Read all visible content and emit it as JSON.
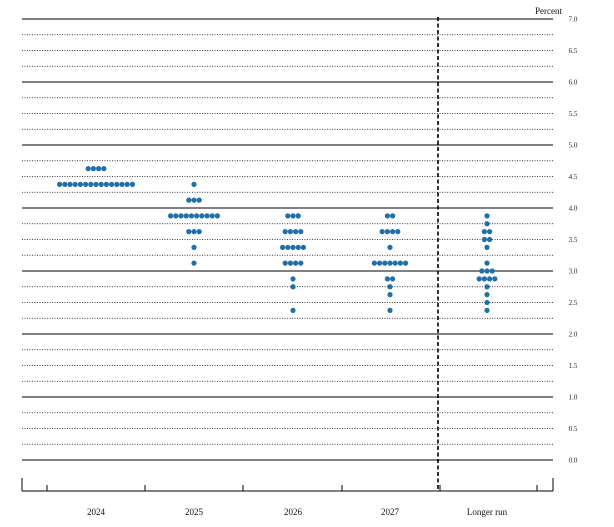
{
  "chart_data": {
    "type": "scatter",
    "ylabel": "Percent",
    "ylim": [
      0,
      7
    ],
    "yticks": [
      "0.0",
      "0.5",
      "1.0",
      "1.5",
      "2.0",
      "2.5",
      "3.0",
      "3.5",
      "4.0",
      "4.5",
      "5.0",
      "5.5",
      "6.0",
      "6.5",
      "7.0"
    ],
    "categories": [
      "2024",
      "2025",
      "2026",
      "2027",
      "Longer run"
    ],
    "grid": true,
    "separator_before": "Longer run",
    "point_color": "#1f6fa8",
    "series": [
      {
        "category": "2024",
        "points": [
          {
            "y": 4.625,
            "count": 4
          },
          {
            "y": 4.375,
            "count": 15
          }
        ]
      },
      {
        "category": "2025",
        "points": [
          {
            "y": 4.375,
            "count": 1
          },
          {
            "y": 4.125,
            "count": 3
          },
          {
            "y": 3.875,
            "count": 10
          },
          {
            "y": 3.625,
            "count": 3
          },
          {
            "y": 3.375,
            "count": 1
          },
          {
            "y": 3.125,
            "count": 1
          }
        ]
      },
      {
        "category": "2026",
        "points": [
          {
            "y": 3.875,
            "count": 3
          },
          {
            "y": 3.625,
            "count": 4
          },
          {
            "y": 3.375,
            "count": 5
          },
          {
            "y": 3.125,
            "count": 4
          },
          {
            "y": 2.875,
            "count": 1
          },
          {
            "y": 2.75,
            "count": 1
          },
          {
            "y": 2.375,
            "count": 1
          }
        ]
      },
      {
        "category": "2027",
        "points": [
          {
            "y": 3.875,
            "count": 2
          },
          {
            "y": 3.625,
            "count": 4
          },
          {
            "y": 3.375,
            "count": 1
          },
          {
            "y": 3.125,
            "count": 7
          },
          {
            "y": 2.875,
            "count": 2
          },
          {
            "y": 2.75,
            "count": 1
          },
          {
            "y": 2.625,
            "count": 1
          },
          {
            "y": 2.375,
            "count": 1
          }
        ]
      },
      {
        "category": "Longer run",
        "points": [
          {
            "y": 3.875,
            "count": 1
          },
          {
            "y": 3.75,
            "count": 1
          },
          {
            "y": 3.625,
            "count": 2
          },
          {
            "y": 3.5,
            "count": 2
          },
          {
            "y": 3.375,
            "count": 1
          },
          {
            "y": 3.125,
            "count": 1
          },
          {
            "y": 3.0,
            "count": 3
          },
          {
            "y": 2.875,
            "count": 4
          },
          {
            "y": 2.75,
            "count": 1
          },
          {
            "y": 2.625,
            "count": 1
          },
          {
            "y": 2.5,
            "count": 1
          },
          {
            "y": 2.375,
            "count": 1
          }
        ]
      }
    ]
  }
}
